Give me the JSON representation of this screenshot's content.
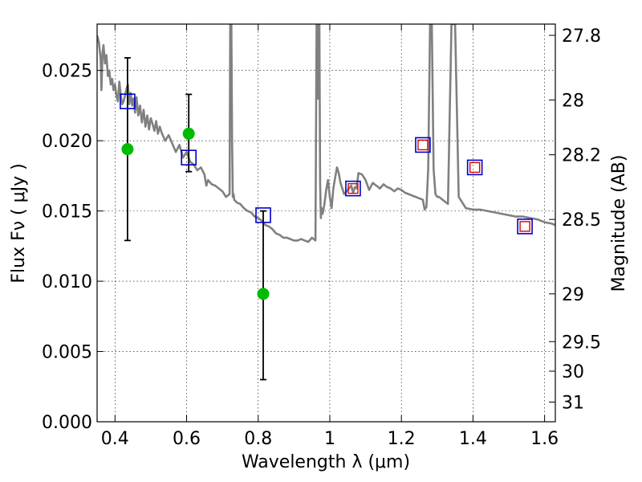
{
  "chart_data": {
    "type": "scatter",
    "xlabel": "Wavelength  λ (μm)",
    "ylabel": "Flux  Fν  ( μJy )",
    "y2label": "Magnitude (AB)",
    "xlim": [
      0.35,
      1.63
    ],
    "ylim": [
      0.0,
      0.0283
    ],
    "x_ticks": [
      0.4,
      0.6,
      0.8,
      1.0,
      1.2,
      1.4,
      1.6
    ],
    "x_tick_labels": [
      "0.4",
      "0.6",
      "0.8",
      "1",
      "1.2",
      "1.4",
      "1.6"
    ],
    "y_ticks": [
      0.0,
      0.005,
      0.01,
      0.015,
      0.02,
      0.025
    ],
    "y_tick_labels": [
      "0.000",
      "0.005",
      "0.010",
      "0.015",
      "0.020",
      "0.025"
    ],
    "y2_ticks": [
      {
        "label": "27.8",
        "flux": 0.0275
      },
      {
        "label": "28",
        "flux": 0.0229
      },
      {
        "label": "28.2",
        "flux": 0.019
      },
      {
        "label": "28.5",
        "flux": 0.0144
      },
      {
        "label": "29",
        "flux": 0.0091
      },
      {
        "label": "29.5",
        "flux": 0.0057
      },
      {
        "label": "30",
        "flux": 0.0036
      },
      {
        "label": "31",
        "flux": 0.0014
      }
    ],
    "grid": true,
    "model_spectrum": {
      "color": "#808080",
      "x": [
        0.35,
        0.355,
        0.36,
        0.362,
        0.365,
        0.368,
        0.372,
        0.376,
        0.38,
        0.384,
        0.388,
        0.392,
        0.396,
        0.4,
        0.404,
        0.408,
        0.412,
        0.416,
        0.42,
        0.424,
        0.428,
        0.432,
        0.436,
        0.44,
        0.444,
        0.448,
        0.452,
        0.456,
        0.46,
        0.465,
        0.47,
        0.475,
        0.48,
        0.485,
        0.49,
        0.495,
        0.5,
        0.505,
        0.51,
        0.515,
        0.52,
        0.525,
        0.53,
        0.54,
        0.55,
        0.56,
        0.57,
        0.58,
        0.59,
        0.6,
        0.61,
        0.62,
        0.63,
        0.64,
        0.65,
        0.655,
        0.66,
        0.67,
        0.68,
        0.69,
        0.7,
        0.71,
        0.72,
        0.722,
        0.725,
        0.727,
        0.729,
        0.731,
        0.733,
        0.74,
        0.75,
        0.76,
        0.77,
        0.78,
        0.79,
        0.8,
        0.81,
        0.82,
        0.83,
        0.84,
        0.85,
        0.86,
        0.87,
        0.88,
        0.89,
        0.9,
        0.91,
        0.92,
        0.93,
        0.94,
        0.95,
        0.96,
        0.963,
        0.965,
        0.967,
        0.969,
        0.971,
        0.973,
        0.975,
        0.977,
        0.98,
        0.985,
        0.99,
        0.995,
        1.0,
        1.005,
        1.01,
        1.015,
        1.02,
        1.025,
        1.03,
        1.04,
        1.05,
        1.06,
        1.065,
        1.07,
        1.075,
        1.08,
        1.09,
        1.1,
        1.11,
        1.12,
        1.13,
        1.14,
        1.15,
        1.16,
        1.17,
        1.18,
        1.19,
        1.2,
        1.21,
        1.22,
        1.23,
        1.24,
        1.25,
        1.26,
        1.265,
        1.27,
        1.275,
        1.28,
        1.285,
        1.29,
        1.295,
        1.3,
        1.305,
        1.31,
        1.315,
        1.32,
        1.325,
        1.33,
        1.34,
        1.35,
        1.36,
        1.38,
        1.4,
        1.42,
        1.44,
        1.46,
        1.48,
        1.5,
        1.52,
        1.54,
        1.56,
        1.58,
        1.6,
        1.62,
        1.63
      ],
      "y": [
        0.0275,
        0.027,
        0.0258,
        0.0236,
        0.0262,
        0.0268,
        0.0255,
        0.0261,
        0.0246,
        0.025,
        0.024,
        0.0244,
        0.0236,
        0.024,
        0.0232,
        0.0228,
        0.0242,
        0.0233,
        0.0226,
        0.0228,
        0.0232,
        0.0237,
        0.024,
        0.0226,
        0.0234,
        0.0225,
        0.023,
        0.022,
        0.0231,
        0.0218,
        0.0225,
        0.0213,
        0.0222,
        0.021,
        0.0218,
        0.0208,
        0.0216,
        0.0212,
        0.0207,
        0.0214,
        0.0205,
        0.021,
        0.0206,
        0.02,
        0.0204,
        0.0198,
        0.0192,
        0.0197,
        0.0188,
        0.0192,
        0.0185,
        0.0183,
        0.0179,
        0.0181,
        0.0176,
        0.0168,
        0.0172,
        0.0169,
        0.0168,
        0.0166,
        0.0164,
        0.016,
        0.0162,
        0.0283,
        0.0283,
        0.02,
        0.016,
        0.0162,
        0.0158,
        0.0156,
        0.0155,
        0.0152,
        0.015,
        0.0149,
        0.0146,
        0.0145,
        0.0143,
        0.014,
        0.0139,
        0.0137,
        0.0134,
        0.0133,
        0.0131,
        0.0131,
        0.013,
        0.0129,
        0.0129,
        0.013,
        0.0129,
        0.0128,
        0.0131,
        0.0129,
        0.0283,
        0.0283,
        0.023,
        0.0283,
        0.0283,
        0.017,
        0.0145,
        0.0152,
        0.0148,
        0.0155,
        0.0165,
        0.0172,
        0.016,
        0.0152,
        0.0166,
        0.0174,
        0.0181,
        0.0177,
        0.017,
        0.0162,
        0.0165,
        0.0168,
        0.0163,
        0.0167,
        0.0166,
        0.0177,
        0.0176,
        0.0172,
        0.0165,
        0.017,
        0.0168,
        0.0166,
        0.0169,
        0.0167,
        0.0166,
        0.0164,
        0.0166,
        0.0165,
        0.0163,
        0.0162,
        0.0161,
        0.016,
        0.0159,
        0.0158,
        0.0151,
        0.0153,
        0.018,
        0.0283,
        0.0283,
        0.018,
        0.0162,
        0.016,
        0.016,
        0.0159,
        0.0158,
        0.0157,
        0.0156,
        0.0155,
        0.0283,
        0.0283,
        0.016,
        0.0152,
        0.0151,
        0.0151,
        0.015,
        0.0149,
        0.0148,
        0.0147,
        0.0146,
        0.0146,
        0.0145,
        0.0144,
        0.0142,
        0.0141,
        0.014
      ]
    },
    "observed_points": {
      "color": "#00bb00",
      "x": [
        0.435,
        0.606,
        0.814
      ],
      "y": [
        0.0194,
        0.0205,
        0.0091
      ],
      "yerr_low": [
        0.0129,
        0.0178,
        0.003
      ],
      "yerr_high": [
        0.0259,
        0.0233,
        0.015
      ]
    },
    "model_photometry": {
      "color": "#0000cc",
      "x": [
        0.435,
        0.606,
        0.814,
        1.065,
        1.26,
        1.405,
        1.545
      ],
      "y": [
        0.0228,
        0.0188,
        0.0147,
        0.0166,
        0.0197,
        0.0181,
        0.0139
      ]
    },
    "observed_ir": {
      "color": "#dd0000",
      "x": [
        1.065,
        1.26,
        1.405,
        1.545
      ],
      "y": [
        0.0166,
        0.0197,
        0.0181,
        0.0139
      ]
    }
  }
}
